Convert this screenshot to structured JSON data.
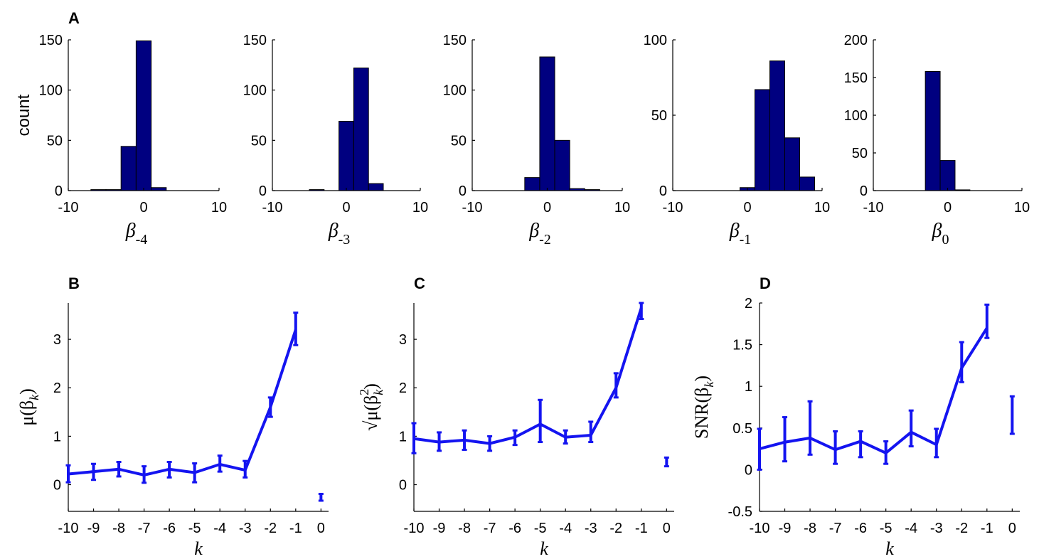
{
  "colors": {
    "bar_fill": "#000080",
    "line": "#1414f0",
    "axis": "#000000"
  },
  "panel_labels": {
    "A": "A",
    "B": "B",
    "C": "C",
    "D": "D"
  },
  "chart_data": [
    {
      "panel": "A",
      "type": "bar",
      "title": "",
      "ylabel": "count",
      "xlabel": {
        "symbol": "β",
        "subscript": "-4"
      },
      "xlim": [
        -10,
        10
      ],
      "ylim": [
        0,
        150
      ],
      "xticks": [
        "-10",
        "0",
        "10"
      ],
      "yticks": [
        "0",
        "50",
        "100",
        "150"
      ],
      "bin_edges": [
        -7,
        -5,
        -3,
        -1,
        1,
        3,
        5
      ],
      "values": [
        1,
        1,
        44,
        149,
        3,
        0
      ]
    },
    {
      "panel": "A",
      "type": "bar",
      "title": "",
      "ylabel": "",
      "xlabel": {
        "symbol": "β",
        "subscript": "-3"
      },
      "xlim": [
        -10,
        10
      ],
      "ylim": [
        0,
        150
      ],
      "xticks": [
        "-10",
        "0",
        "10"
      ],
      "yticks": [
        "0",
        "50",
        "100",
        "150"
      ],
      "bin_edges": [
        -7,
        -5,
        -3,
        -1,
        1,
        3,
        5
      ],
      "values": [
        0,
        1,
        0,
        69,
        122,
        7
      ]
    },
    {
      "panel": "A",
      "type": "bar",
      "title": "",
      "ylabel": "",
      "xlabel": {
        "symbol": "β",
        "subscript": "-2"
      },
      "xlim": [
        -10,
        10
      ],
      "ylim": [
        0,
        150
      ],
      "xticks": [
        "-10",
        "0",
        "10"
      ],
      "yticks": [
        "0",
        "50",
        "100",
        "150"
      ],
      "bin_edges": [
        -3,
        -1,
        1,
        3,
        5,
        7,
        9
      ],
      "values": [
        13,
        133,
        50,
        2,
        1,
        0
      ]
    },
    {
      "panel": "A",
      "type": "bar",
      "title": "",
      "ylabel": "",
      "xlabel": {
        "symbol": "β",
        "subscript": "-1"
      },
      "xlim": [
        -10,
        10
      ],
      "ylim": [
        0,
        100
      ],
      "xticks": [
        "-10",
        "0",
        "10"
      ],
      "yticks": [
        "0",
        "50",
        "100"
      ],
      "bin_edges": [
        -3,
        -1,
        1,
        3,
        5,
        7,
        9
      ],
      "values": [
        0,
        2,
        67,
        86,
        35,
        9
      ]
    },
    {
      "panel": "A",
      "type": "bar",
      "title": "",
      "ylabel": "",
      "xlabel": {
        "symbol": "β",
        "subscript": "0"
      },
      "xlim": [
        -10,
        10
      ],
      "ylim": [
        0,
        200
      ],
      "xticks": [
        "-10",
        "0",
        "10"
      ],
      "yticks": [
        "0",
        "50",
        "100",
        "150",
        "200"
      ],
      "bin_edges": [
        -3,
        -1,
        1,
        3,
        5
      ],
      "values": [
        158,
        40,
        1,
        0
      ]
    },
    {
      "panel": "B",
      "type": "line",
      "title": "",
      "ylabel": "μ(β_k)",
      "xlabel": "k",
      "xlim": [
        -10,
        0.3
      ],
      "ylim": [
        -0.55,
        3.75
      ],
      "xticks": [
        "-10",
        "-9",
        "-8",
        "-7",
        "-6",
        "-5",
        "-4",
        "-3",
        "-2",
        "-1",
        "0"
      ],
      "yticks": [
        "0",
        "1",
        "2",
        "3"
      ],
      "x": [
        -10,
        -9,
        -8,
        -7,
        -6,
        -5,
        -4,
        -3,
        -2,
        -1
      ],
      "y": [
        0.22,
        0.27,
        0.32,
        0.2,
        0.32,
        0.25,
        0.42,
        0.3,
        1.6,
        3.2
      ],
      "err_low": [
        0.05,
        0.1,
        0.17,
        0.04,
        0.15,
        0.05,
        0.27,
        0.15,
        1.4,
        2.88
      ],
      "err_high": [
        0.4,
        0.43,
        0.47,
        0.38,
        0.47,
        0.44,
        0.6,
        0.49,
        1.8,
        3.55
      ],
      "extra_point": {
        "x": 0,
        "err_low": -0.33,
        "err_high": -0.19
      }
    },
    {
      "panel": "C",
      "type": "line",
      "title": "",
      "ylabel": "√μ(β_k^2)",
      "xlabel": "k",
      "xlim": [
        -10,
        0.3
      ],
      "ylim": [
        -0.55,
        3.75
      ],
      "xticks": [
        "-10",
        "-9",
        "-8",
        "-7",
        "-6",
        "-5",
        "-4",
        "-3",
        "-2",
        "-1",
        "0"
      ],
      "yticks": [
        "0",
        "1",
        "2",
        "3"
      ],
      "x": [
        -10,
        -9,
        -8,
        -7,
        -6,
        -5,
        -4,
        -3,
        -2,
        -1
      ],
      "y": [
        0.95,
        0.88,
        0.92,
        0.85,
        0.98,
        1.25,
        0.98,
        1.02,
        2.0,
        3.65
      ],
      "err_low": [
        0.65,
        0.7,
        0.72,
        0.7,
        0.82,
        0.88,
        0.85,
        0.88,
        1.8,
        3.42
      ],
      "err_high": [
        1.27,
        1.08,
        1.12,
        1.0,
        1.12,
        1.75,
        1.12,
        1.3,
        2.3,
        3.75
      ],
      "extra_point": {
        "x": 0,
        "err_low": 0.38,
        "err_high": 0.56
      }
    },
    {
      "panel": "D",
      "type": "line",
      "title": "",
      "ylabel": "SNR(β_k)",
      "xlabel": "k",
      "xlim": [
        -10,
        0.3
      ],
      "ylim": [
        -0.5,
        2
      ],
      "xticks": [
        "-10",
        "-9",
        "-8",
        "-7",
        "-6",
        "-5",
        "-4",
        "-3",
        "-2",
        "-1",
        "0"
      ],
      "yticks": [
        "-0.5",
        "0",
        "0.5",
        "1",
        "1.5",
        "2"
      ],
      "x": [
        -10,
        -9,
        -8,
        -7,
        -6,
        -5,
        -4,
        -3,
        -2,
        -1
      ],
      "y": [
        0.25,
        0.33,
        0.38,
        0.24,
        0.34,
        0.2,
        0.45,
        0.3,
        1.22,
        1.7
      ],
      "err_low": [
        0.0,
        0.1,
        0.18,
        0.07,
        0.15,
        0.07,
        0.28,
        0.15,
        1.05,
        1.58
      ],
      "err_high": [
        0.49,
        0.63,
        0.82,
        0.46,
        0.46,
        0.34,
        0.71,
        0.49,
        1.53,
        1.98
      ],
      "extra_point": {
        "x": 0,
        "err_low": 0.43,
        "err_high": 0.88
      }
    }
  ]
}
